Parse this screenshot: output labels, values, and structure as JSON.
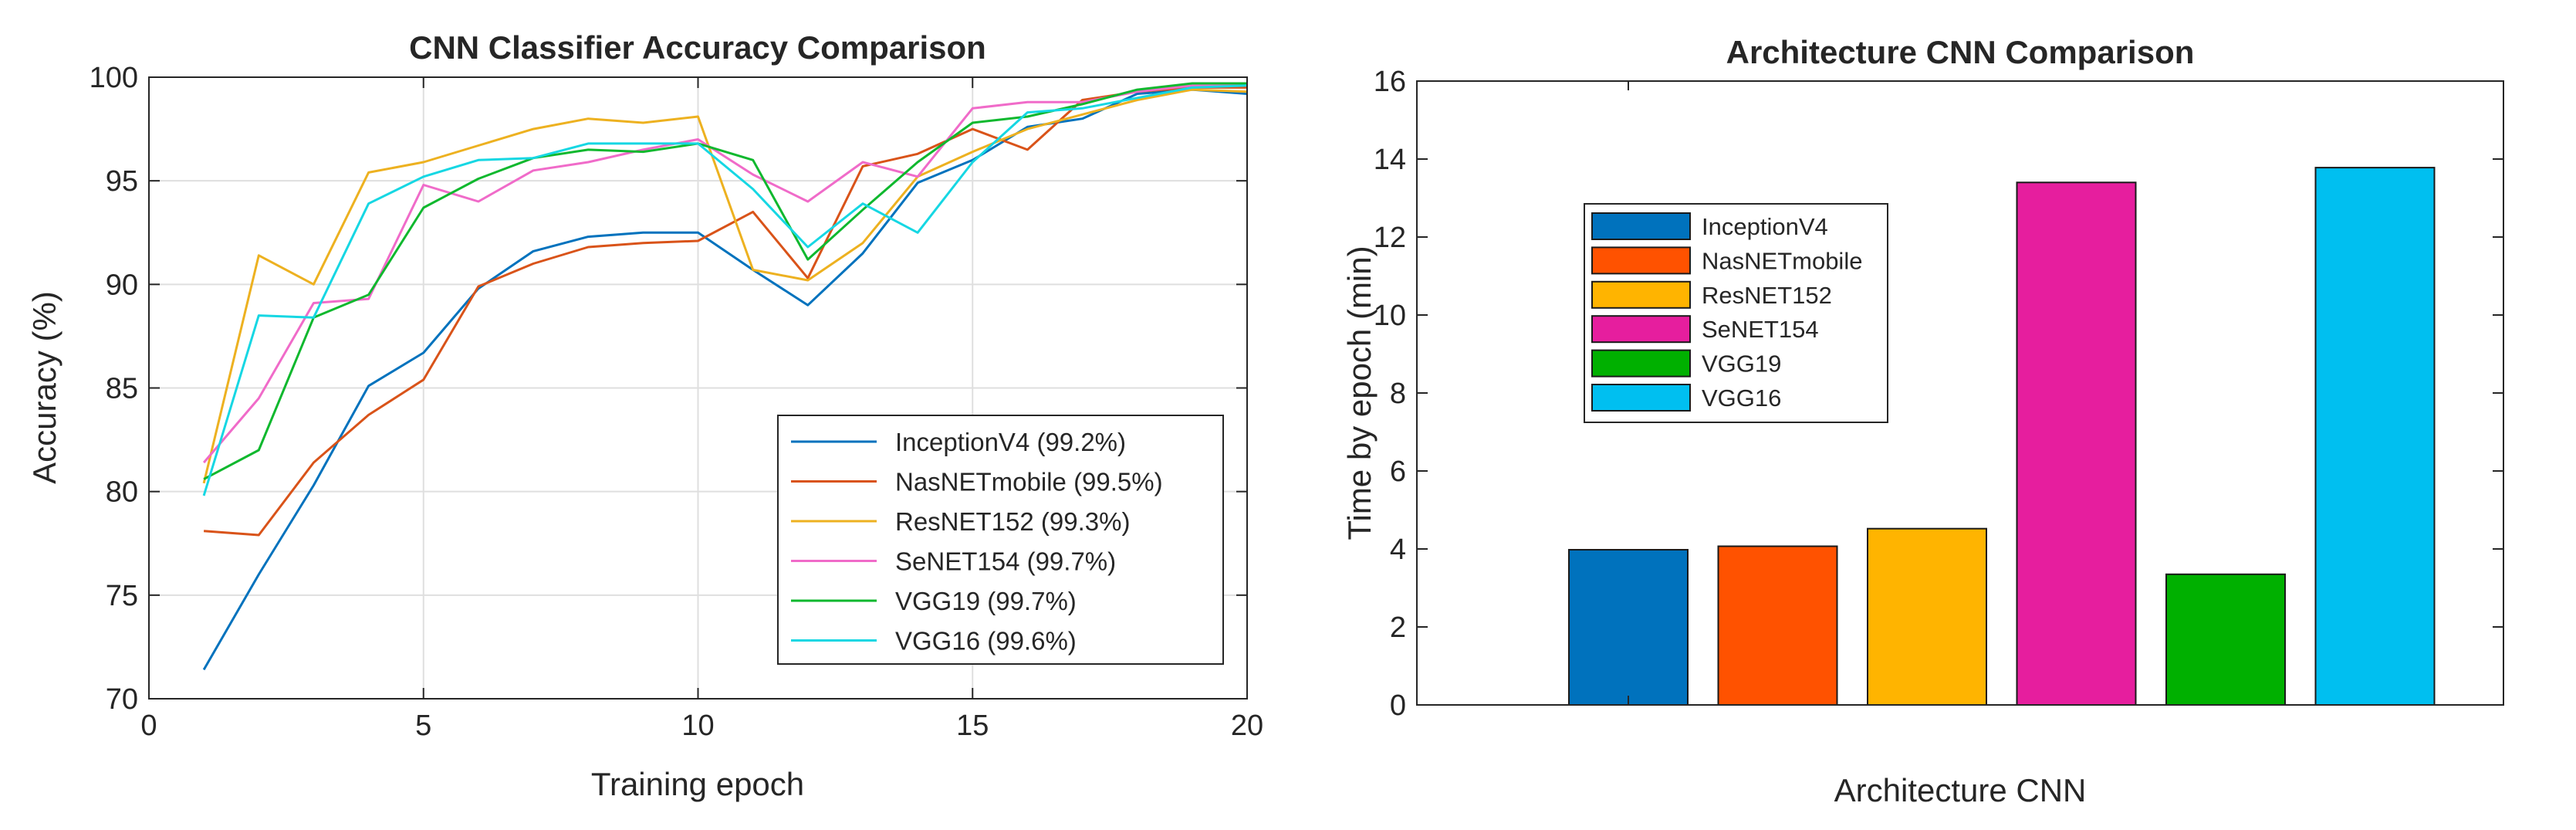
{
  "chart_data": [
    {
      "type": "line",
      "title": "CNN Classifier Accuracy Comparison",
      "xlabel": "Training epoch",
      "ylabel": "Accuracy (%)",
      "xlim": [
        0,
        20
      ],
      "ylim": [
        70,
        100
      ],
      "xticks": [
        "0",
        "5",
        "10",
        "15",
        "20"
      ],
      "yticks": [
        "70",
        "75",
        "80",
        "85",
        "90",
        "95",
        "100"
      ],
      "grid": true,
      "legend_position": "bottom-right",
      "x": [
        1,
        2,
        3,
        4,
        5,
        6,
        7,
        8,
        9,
        10,
        11,
        12,
        13,
        14,
        15,
        16,
        17,
        18,
        19,
        20
      ],
      "series": [
        {
          "name": "InceptionV4 (99.2%)",
          "color": "#0072BD",
          "values": [
            71.4,
            76.0,
            80.3,
            85.1,
            86.7,
            89.8,
            91.6,
            92.3,
            92.5,
            92.5,
            90.7,
            89.0,
            91.5,
            94.9,
            96.0,
            97.6,
            98.0,
            99.2,
            99.4,
            99.2
          ]
        },
        {
          "name": "NasNETmobile (99.5%)",
          "color": "#D95319",
          "values": [
            78.1,
            77.9,
            81.4,
            83.7,
            85.4,
            89.9,
            91.0,
            91.8,
            92.0,
            92.1,
            93.5,
            90.3,
            95.7,
            96.3,
            97.5,
            96.5,
            98.9,
            99.3,
            99.5,
            99.5
          ]
        },
        {
          "name": "ResNET152 (99.3%)",
          "color": "#EDB120",
          "values": [
            80.4,
            91.4,
            90.0,
            95.4,
            95.9,
            96.7,
            97.5,
            98.0,
            97.8,
            98.1,
            90.7,
            90.2,
            92.0,
            95.2,
            96.4,
            97.5,
            98.2,
            98.9,
            99.4,
            99.3
          ]
        },
        {
          "name": "SeNET154 (99.7%)",
          "color": "#F06BC9",
          "values": [
            81.4,
            84.5,
            89.1,
            89.3,
            94.8,
            94.0,
            95.5,
            95.9,
            96.5,
            97.0,
            95.3,
            94.0,
            95.9,
            95.2,
            98.5,
            98.8,
            98.8,
            99.3,
            99.6,
            99.7
          ]
        },
        {
          "name": "VGG19 (99.7%)",
          "color": "#0FB82E",
          "values": [
            80.6,
            82.0,
            88.4,
            89.5,
            93.7,
            95.1,
            96.1,
            96.5,
            96.4,
            96.8,
            96.0,
            91.2,
            93.6,
            95.9,
            97.8,
            98.1,
            98.7,
            99.4,
            99.7,
            99.7
          ]
        },
        {
          "name": "VGG16 (99.6%)",
          "color": "#16D7E3",
          "values": [
            79.8,
            88.5,
            88.4,
            93.9,
            95.2,
            96.0,
            96.1,
            96.8,
            96.8,
            96.8,
            94.6,
            91.8,
            93.9,
            92.5,
            95.9,
            98.3,
            98.5,
            99.0,
            99.5,
            99.6
          ]
        }
      ]
    },
    {
      "type": "bar",
      "title": "Architecture CNN Comparison",
      "xlabel": "Architecture CNN",
      "ylabel": "Time by epoch (min)",
      "ylim": [
        0,
        16
      ],
      "yticks": [
        "0",
        "2",
        "4",
        "6",
        "8",
        "10",
        "12",
        "14",
        "16"
      ],
      "grid": false,
      "legend_position": "top-left",
      "categories": [
        "InceptionV4",
        "NasNETmobile",
        "ResNET152",
        "SeNET154",
        "VGG19",
        "VGG16"
      ],
      "values": [
        3.98,
        4.07,
        4.52,
        13.4,
        3.35,
        13.78
      ],
      "colors": [
        "#0072BD",
        "#FF5200",
        "#FFB400",
        "#E61E9E",
        "#00B000",
        "#00BFF0"
      ]
    }
  ]
}
